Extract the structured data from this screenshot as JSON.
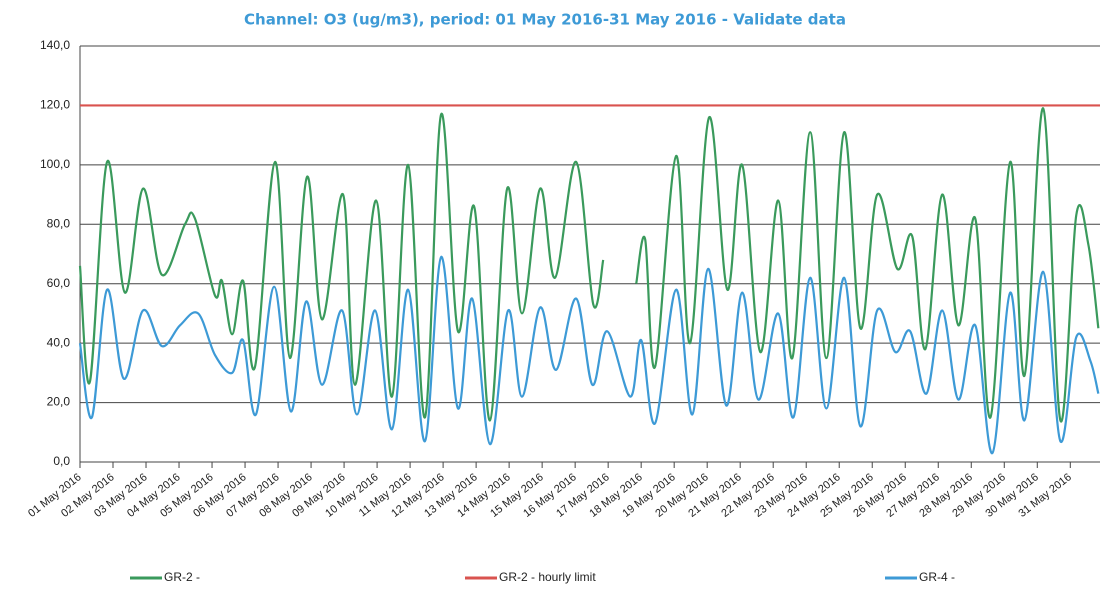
{
  "chart_data": {
    "type": "line",
    "title": "Channel: O3 (ug/m3), period: 01 May 2016-31 May 2016 - Validate data",
    "xlim": [
      1,
      31.9
    ],
    "xticks": [
      {
        "value": 1,
        "label": "01 May 2016"
      },
      {
        "value": 2,
        "label": "02 May 2016"
      },
      {
        "value": 3,
        "label": "03 May 2016"
      },
      {
        "value": 4,
        "label": "04 May 2016"
      },
      {
        "value": 5,
        "label": "05 May 2016"
      },
      {
        "value": 6,
        "label": "06 May 2016"
      },
      {
        "value": 7,
        "label": "07 May 2016"
      },
      {
        "value": 8,
        "label": "08 May 2016"
      },
      {
        "value": 9,
        "label": "09 May 2016"
      },
      {
        "value": 10,
        "label": "10 May 2016"
      },
      {
        "value": 11,
        "label": "11 May 2016"
      },
      {
        "value": 12,
        "label": "12 May 2016"
      },
      {
        "value": 13,
        "label": "13 May 2016"
      },
      {
        "value": 14,
        "label": "14 May 2016"
      },
      {
        "value": 15,
        "label": "15 May 2016"
      },
      {
        "value": 16,
        "label": "16 May 2016"
      },
      {
        "value": 17,
        "label": "17 May 2016"
      },
      {
        "value": 18,
        "label": "18 May 2016"
      },
      {
        "value": 19,
        "label": "19 May 2016"
      },
      {
        "value": 20,
        "label": "20 May 2016"
      },
      {
        "value": 21,
        "label": "21 May 2016"
      },
      {
        "value": 22,
        "label": "22 May 2016"
      },
      {
        "value": 23,
        "label": "23 May 2016"
      },
      {
        "value": 24,
        "label": "24 May 2016"
      },
      {
        "value": 25,
        "label": "25 May 2016"
      },
      {
        "value": 26,
        "label": "26 May 2016"
      },
      {
        "value": 27,
        "label": "27 May 2016"
      },
      {
        "value": 28,
        "label": "28 May 2016"
      },
      {
        "value": 29,
        "label": "29 May 2016"
      },
      {
        "value": 30,
        "label": "30 May 2016"
      },
      {
        "value": 31,
        "label": "31 May 2016"
      }
    ],
    "ylim": [
      0,
      140
    ],
    "yticks": [
      {
        "value": 0,
        "label": "0,0"
      },
      {
        "value": 20,
        "label": "20,0"
      },
      {
        "value": 40,
        "label": "40,0"
      },
      {
        "value": 60,
        "label": "60,0"
      },
      {
        "value": 80,
        "label": "80,0"
      },
      {
        "value": 100,
        "label": "100,0"
      },
      {
        "value": 120,
        "label": "120,0"
      },
      {
        "value": 140,
        "label": "140,0"
      }
    ],
    "grid": true,
    "legend": "bottom",
    "series": [
      {
        "name": "GR-2 -",
        "color": "#3a9a5c",
        "x": [
          1,
          1.3,
          1.82,
          2.36,
          2.91,
          3.48,
          4.18,
          4.48,
          5.09,
          5.3,
          5.61,
          5.94,
          6.3,
          6.91,
          7.36,
          7.88,
          8.33,
          8.97,
          9.33,
          9.97,
          10.45,
          10.94,
          11.45,
          11.94,
          12.45,
          12.94,
          13.42,
          13.94,
          14.39,
          14.94,
          15.39,
          16.03,
          16.55,
          16.85,
          17.3,
          17.85,
          18.12,
          18.42,
          19.06,
          19.48,
          20.06,
          20.61,
          21.06,
          21.61,
          22.15,
          22.58,
          23.12,
          23.61,
          24.15,
          24.64,
          25.15,
          25.76,
          26.21,
          26.61,
          27.12,
          27.61,
          28.12,
          28.58,
          29.18,
          29.61,
          30.18,
          30.7,
          31.18,
          31.55,
          31.85
        ],
        "values": [
          66,
          27,
          101,
          57,
          92,
          63,
          80,
          82,
          56,
          61,
          43,
          61,
          32,
          101,
          35,
          96,
          48,
          90,
          26,
          88,
          22,
          100,
          15,
          117,
          44,
          86,
          14,
          92,
          50,
          92,
          62,
          101,
          53,
          68,
          null,
          60,
          75,
          32,
          103,
          40,
          116,
          58,
          100,
          37,
          88,
          35,
          111,
          35,
          111,
          45,
          90,
          65,
          76,
          38,
          90,
          46,
          82,
          15,
          101,
          29,
          119,
          14,
          83,
          73,
          45
        ]
      },
      {
        "name": "GR-2 - hourly limit",
        "color": "#d9534f",
        "x": [
          1,
          31.9
        ],
        "values": [
          120,
          120
        ]
      },
      {
        "name": "GR-4 -",
        "color": "#3d9ad6",
        "x": [
          1,
          1.36,
          1.82,
          2.33,
          2.91,
          3.48,
          4.03,
          4.58,
          5.09,
          5.61,
          5.94,
          6.33,
          6.88,
          7.39,
          7.85,
          8.33,
          8.94,
          9.39,
          9.94,
          10.45,
          10.94,
          11.45,
          11.94,
          12.45,
          12.88,
          13.42,
          13.97,
          14.39,
          14.94,
          15.42,
          16.03,
          16.52,
          16.97,
          17.67,
          18.0,
          18.42,
          19.06,
          19.55,
          20.03,
          20.58,
          21.06,
          21.55,
          22.15,
          22.61,
          23.12,
          23.61,
          24.15,
          24.64,
          25.15,
          25.7,
          26.15,
          26.64,
          27.12,
          27.61,
          28.12,
          28.64,
          29.18,
          29.61,
          30.18,
          30.7,
          31.18,
          31.61,
          31.85
        ],
        "values": [
          40,
          15,
          58,
          28,
          51,
          39,
          46,
          50,
          36,
          30,
          41,
          16,
          59,
          17,
          54,
          26,
          51,
          16,
          51,
          11,
          58,
          7,
          69,
          18,
          55,
          6,
          51,
          22,
          52,
          31,
          55,
          26,
          44,
          22,
          41,
          13,
          58,
          16,
          65,
          19,
          57,
          21,
          50,
          15,
          62,
          18,
          62,
          12,
          51,
          37,
          44,
          23,
          51,
          21,
          46,
          3,
          57,
          14,
          64,
          7,
          42,
          34,
          23
        ]
      }
    ]
  }
}
